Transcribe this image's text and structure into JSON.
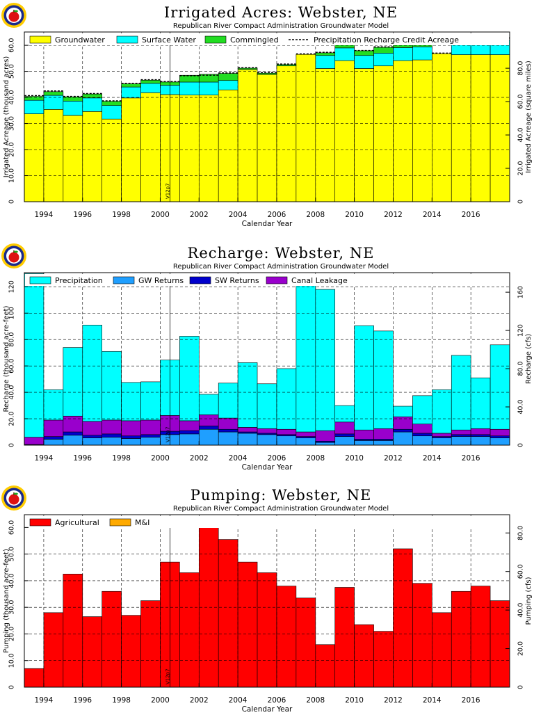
{
  "colors": {
    "groundwater": "#ffff00",
    "surface_water": "#00ffff",
    "commingled": "#22dd22",
    "precipitation": "#00ffff",
    "gw_returns": "#1f9fff",
    "sw_returns": "#0000cc",
    "canal_leakage": "#9900cc",
    "agricultural": "#ff0000",
    "mi": "#ffaa00",
    "logo_border": "#ffcc00",
    "logo_ring": "#1a2a8c",
    "logo_apple": "#dd1111"
  },
  "version_stamp": "V12p7",
  "chart_data": [
    {
      "type": "bar",
      "stacked": true,
      "title": "Irrigated Acres: Webster, NE",
      "subtitle": "Republican River Compact Administration Groundwater Model",
      "xlabel": "Calendar Year",
      "ylabel": "Irrigated Acreage (thousand acres)",
      "ylabel_right": "Irrigated Acreage (square miles)",
      "ylim": [
        0,
        65.1
      ],
      "yticks": [
        0,
        10,
        20,
        30,
        40,
        50,
        60
      ],
      "ytick_labels": [
        "0",
        "10.0",
        "20.0",
        "30.0",
        "40.0",
        "50.0",
        "60.0"
      ],
      "yticks_right": [
        0,
        20,
        40,
        60,
        80
      ],
      "ytick_labels_right": [
        "0",
        "20.0",
        "40.0",
        "60.0",
        "80.0"
      ],
      "right_axis_factor": 0.0015625,
      "xlim": [
        1993,
        2018
      ],
      "xticks": [
        1994,
        1996,
        1998,
        2000,
        2002,
        2004,
        2006,
        2008,
        2010,
        2012,
        2014,
        2016
      ],
      "grid": true,
      "legend_position": "top",
      "categories": [
        1993,
        1994,
        1995,
        1996,
        1997,
        1998,
        1999,
        2000,
        2001,
        2002,
        2003,
        2004,
        2005,
        2006,
        2007,
        2008,
        2009,
        2010,
        2011,
        2012,
        2013,
        2014,
        2015,
        2016,
        2017
      ],
      "series": [
        {
          "name": "Groundwater",
          "color_key": "groundwater",
          "values": [
            33.7,
            35.4,
            33.1,
            34.6,
            31.7,
            39.8,
            41.8,
            41.1,
            40.9,
            40.9,
            42.9,
            50.7,
            48.8,
            52.1,
            56.5,
            51.1,
            54.1,
            51.1,
            52.1,
            54.1,
            54.4,
            56.8,
            56.4,
            56.4,
            56.4
          ]
        },
        {
          "name": "Surface Water",
          "color_key": "surface_water",
          "values": [
            5.2,
            5.4,
            5.5,
            5.2,
            5.2,
            4.2,
            3.6,
            3.6,
            5.0,
            5.0,
            3.6,
            0,
            0,
            0,
            0,
            5.0,
            4.9,
            5.0,
            4.9,
            5.0,
            5.0,
            0,
            5.6,
            5.6,
            5.6
          ]
        },
        {
          "name": "Commingled",
          "color_key": "commingled",
          "values": [
            1.5,
            1.4,
            1.6,
            1.5,
            1.6,
            1.2,
            1.2,
            1.2,
            2.6,
            3.0,
            2.7,
            0.5,
            0.5,
            0.5,
            0,
            1.0,
            1.7,
            1.8,
            2.2,
            1.3,
            1.1,
            0,
            0,
            0,
            0
          ]
        }
      ],
      "line_series": {
        "name": "Precipitation Recharge Credit Acreage",
        "values": [
          40.7,
          42.5,
          40.4,
          41.5,
          38.7,
          45.4,
          46.8,
          46.1,
          48.3,
          48.5,
          49.4,
          51.4,
          49.5,
          52.8,
          56.7,
          57.3,
          60.9,
          58.0,
          59.4,
          60.6,
          60.6,
          57.0,
          62.2,
          62.2,
          62.8
        ]
      }
    },
    {
      "type": "bar",
      "stacked": true,
      "title": "Recharge: Webster, NE",
      "subtitle": "Republican River Compact Administration Groundwater Model",
      "xlabel": "Calendar Year",
      "ylabel": "Recharge (thousand acre-feet)",
      "ylabel_right": "Recharge (cfs)",
      "ylim": [
        0,
        130.7
      ],
      "yticks": [
        0,
        20,
        40,
        60,
        80,
        100,
        120
      ],
      "ytick_labels": [
        "0",
        "20.0",
        "40.0",
        "60.0",
        "80.0",
        "100",
        "120"
      ],
      "yticks_right": [
        0,
        40,
        80,
        120,
        160
      ],
      "ytick_labels_right": [
        "0",
        "40.0",
        "80.0",
        "120",
        "160"
      ],
      "right_axis_factor": 1.3807,
      "xlim": [
        1993,
        2018
      ],
      "xticks": [
        1994,
        1996,
        1998,
        2000,
        2002,
        2004,
        2006,
        2008,
        2010,
        2012,
        2014,
        2016
      ],
      "grid": true,
      "legend_position": "top",
      "categories": [
        1993,
        1994,
        1995,
        1996,
        1997,
        1998,
        1999,
        2000,
        2001,
        2002,
        2003,
        2004,
        2005,
        2006,
        2007,
        2008,
        2009,
        2010,
        2011,
        2012,
        2013,
        2014,
        2015,
        2016,
        2017
      ],
      "series": [
        {
          "name": "GW Returns",
          "color_key": "gw_returns",
          "values": [
            0.5,
            4.5,
            7.5,
            5.5,
            6.0,
            5.0,
            6.0,
            8.0,
            8.5,
            12.0,
            10.0,
            9.0,
            8.0,
            7.0,
            5.5,
            2.0,
            6.5,
            3.5,
            3.5,
            10.0,
            7.0,
            5.5,
            6.5,
            6.5,
            5.5
          ]
        },
        {
          "name": "SW Returns",
          "color_key": "sw_returns",
          "values": [
            0,
            2.0,
            2.5,
            2.0,
            2.5,
            2.0,
            2.0,
            2.5,
            2.5,
            2.5,
            2.0,
            1.0,
            1.0,
            1.0,
            1.0,
            1.0,
            2.0,
            1.0,
            1.0,
            2.0,
            2.0,
            1.0,
            1.5,
            1.5,
            1.5
          ]
        },
        {
          "name": "Canal Leakage",
          "color_key": "canal_leakage",
          "values": [
            5.5,
            12.5,
            12.0,
            10.5,
            10.5,
            11.5,
            11.0,
            12.0,
            7.5,
            8.5,
            8.5,
            3.5,
            3.5,
            4.0,
            3.5,
            8.0,
            9.0,
            7.0,
            8.0,
            9.5,
            7.0,
            2.5,
            3.5,
            4.5,
            5.0
          ]
        },
        {
          "name": "Precipitation",
          "color_key": "precipitation",
          "values": [
            124.0,
            23.0,
            52.0,
            73.0,
            52.0,
            29.0,
            29.0,
            42.0,
            64.0,
            15.5,
            26.5,
            49.0,
            34.0,
            46.0,
            113.0,
            107.0,
            12.5,
            79.0,
            74.0,
            8.0,
            21.5,
            33.0,
            56.5,
            38.5,
            64.0
          ]
        }
      ]
    },
    {
      "type": "bar",
      "stacked": true,
      "title": "Pumping: Webster, NE",
      "subtitle": "Republican River Compact Administration Groundwater Model",
      "xlabel": "Calendar Year",
      "ylabel": "Pumping (thousand acre-feet)",
      "ylabel_right": "Pumping (cfs)",
      "ylim": [
        0,
        64.8
      ],
      "yticks": [
        0,
        10,
        20,
        30,
        40,
        50,
        60
      ],
      "ytick_labels": [
        "0",
        "10.0",
        "20.0",
        "30.0",
        "40.0",
        "50.0",
        "60.0"
      ],
      "yticks_right": [
        0,
        20,
        40,
        60,
        80
      ],
      "ytick_labels_right": [
        "0",
        "20.0",
        "40.0",
        "60.0",
        "80.0"
      ],
      "right_axis_factor": 1.3807,
      "xlim": [
        1993,
        2018
      ],
      "xticks": [
        1994,
        1996,
        1998,
        2000,
        2002,
        2004,
        2006,
        2008,
        2010,
        2012,
        2014,
        2016
      ],
      "grid": true,
      "legend_position": "top",
      "categories": [
        1993,
        1994,
        1995,
        1996,
        1997,
        1998,
        1999,
        2000,
        2001,
        2002,
        2003,
        2004,
        2005,
        2006,
        2007,
        2008,
        2009,
        2010,
        2011,
        2012,
        2013,
        2014,
        2015,
        2016,
        2017
      ],
      "series": [
        {
          "name": "Agricultural",
          "color_key": "agricultural",
          "values": [
            7.0,
            28.0,
            42.5,
            26.5,
            36.0,
            27.0,
            32.5,
            47.0,
            43.0,
            63.5,
            55.5,
            47.0,
            43.0,
            38.0,
            33.5,
            16.0,
            37.5,
            23.5,
            21.0,
            52.0,
            39.0,
            28.0,
            36.0,
            38.0,
            32.5
          ]
        },
        {
          "name": "M&I",
          "color_key": "mi",
          "values": [
            0,
            0,
            0,
            0,
            0,
            0,
            0,
            0,
            0,
            0,
            0,
            0,
            0,
            0,
            0,
            0,
            0,
            0,
            0,
            0,
            0,
            0,
            0,
            0,
            0
          ]
        }
      ]
    }
  ]
}
